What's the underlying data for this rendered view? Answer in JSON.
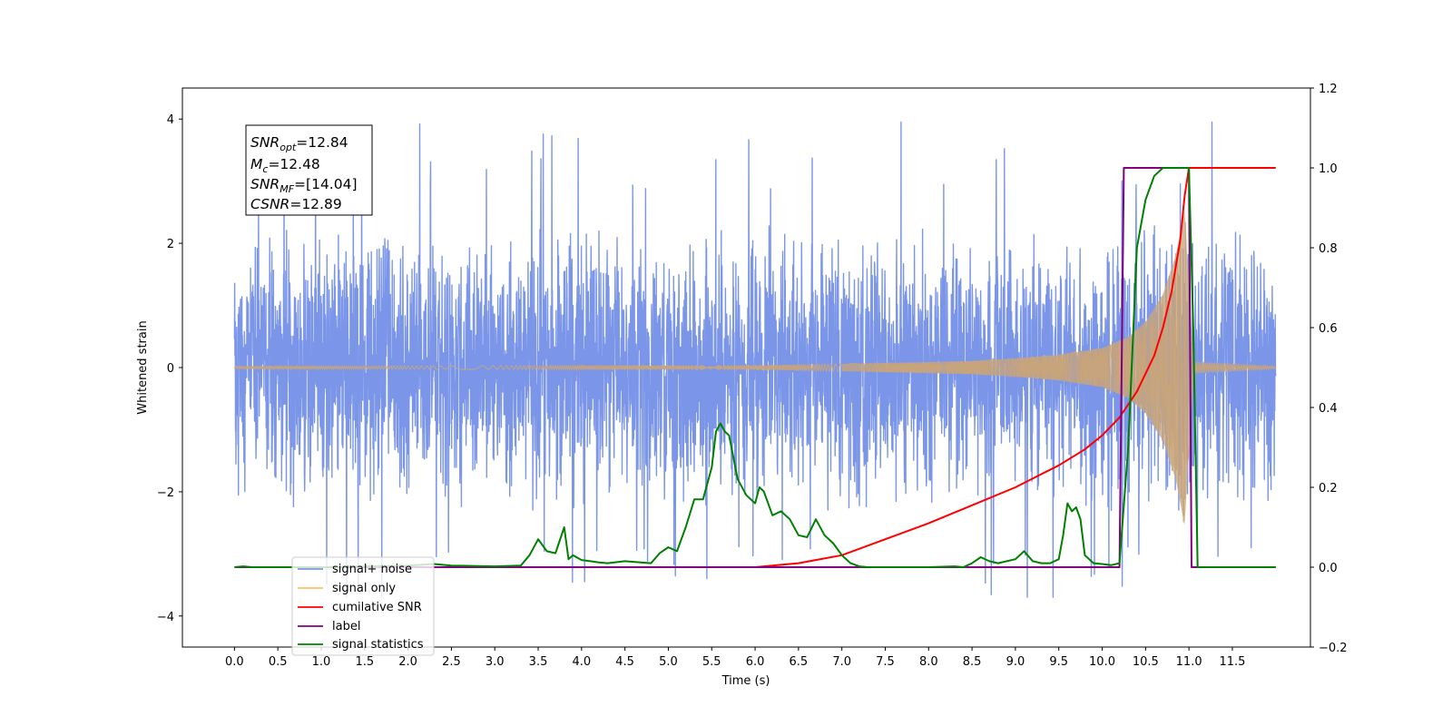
{
  "chart_data": {
    "type": "line",
    "xlabel": "Time (s)",
    "ylabel_left": "Whitened strain",
    "ylabel_right": "",
    "xlim": [
      -0.6,
      12.4
    ],
    "ylim_left": [
      -4.5,
      4.5
    ],
    "ylim_right": [
      -0.2,
      1.2
    ],
    "x_ticks": [
      0.0,
      0.5,
      1.0,
      1.5,
      2.0,
      2.5,
      3.0,
      3.5,
      4.0,
      4.5,
      5.0,
      5.5,
      6.0,
      6.5,
      7.0,
      7.5,
      8.0,
      8.5,
      9.0,
      9.5,
      10.0,
      10.5,
      11.0,
      11.5
    ],
    "x_tick_labels": [
      "0.0",
      "0.5",
      "1.0",
      "1.5",
      "2.0",
      "2.5",
      "3.0",
      "3.5",
      "4.0",
      "4.5",
      "5.0",
      "5.5",
      "6.0",
      "6.5",
      "7.0",
      "7.5",
      "8.0",
      "8.5",
      "9.0",
      "9.5",
      "10.0",
      "10.5",
      "11.0",
      "11.5"
    ],
    "y_ticks_left": [
      -4,
      -2,
      0,
      2,
      4
    ],
    "y_tick_labels_left": [
      "−4",
      "−2",
      "0",
      "2",
      "4"
    ],
    "y_ticks_right": [
      -0.2,
      0.0,
      0.2,
      0.4,
      0.6,
      0.8,
      1.0,
      1.2
    ],
    "y_tick_labels_right": [
      "−0.2",
      "0.0",
      "0.2",
      "0.4",
      "0.6",
      "0.8",
      "1.0",
      "1.2"
    ],
    "grid": false,
    "legend_position": "bottom-left",
    "annotation": [
      {
        "base": "SNR",
        "sub": "opt",
        "rest": "=12.84"
      },
      {
        "base": "M",
        "sub": "c",
        "rest": "=12.48"
      },
      {
        "base": "SNR",
        "sub": "MF",
        "rest": "=[14.04]"
      },
      {
        "base": "CSNR",
        "sub": "",
        "rest": "=12.89"
      }
    ],
    "noise": {
      "t_start": 0.0,
      "t_end": 12.0,
      "typical_envelope": [
        -2.2,
        2.5
      ],
      "extremes": [
        -3.7,
        4.1
      ],
      "color": "#7b96e8"
    },
    "signal_only": {
      "axis": "left",
      "color": "#c8a47a",
      "t_start": 0.0,
      "merger_time": 10.95,
      "end_time": 11.05,
      "envelope": [
        [
          0.0,
          0.02
        ],
        [
          6.0,
          0.04
        ],
        [
          7.0,
          0.06
        ],
        [
          8.0,
          0.09
        ],
        [
          8.5,
          0.11
        ],
        [
          9.0,
          0.15
        ],
        [
          9.5,
          0.21
        ],
        [
          10.0,
          0.32
        ],
        [
          10.3,
          0.5
        ],
        [
          10.5,
          0.75
        ],
        [
          10.7,
          1.2
        ],
        [
          10.85,
          1.85
        ],
        [
          10.95,
          2.6
        ],
        [
          11.05,
          0.1
        ],
        [
          12.0,
          0.02
        ]
      ]
    },
    "series": [
      {
        "name": "cumilative SNR",
        "axis": "right",
        "color": "#ff0000",
        "x": [
          0.0,
          6.0,
          6.5,
          7.0,
          7.5,
          8.0,
          8.5,
          9.0,
          9.5,
          9.8,
          10.0,
          10.2,
          10.4,
          10.6,
          10.7,
          10.8,
          10.9,
          10.95,
          11.0,
          11.2,
          11.5,
          12.0
        ],
        "y": [
          0.0,
          0.0,
          0.01,
          0.03,
          0.07,
          0.11,
          0.155,
          0.2,
          0.255,
          0.295,
          0.33,
          0.375,
          0.44,
          0.53,
          0.6,
          0.69,
          0.82,
          0.93,
          1.0,
          1.0,
          1.0,
          1.0
        ]
      },
      {
        "name": "label",
        "axis": "right",
        "color": "#800080",
        "x": [
          0.0,
          10.2,
          10.25,
          11.0,
          11.03,
          12.0
        ],
        "y": [
          0.0,
          0.0,
          1.0,
          1.0,
          0.0,
          0.0
        ]
      },
      {
        "name": "signal statistics",
        "axis": "right",
        "color": "#008000",
        "x": [
          0.0,
          0.1,
          0.2,
          0.3,
          1.0,
          1.5,
          2.0,
          2.3,
          2.5,
          3.0,
          3.3,
          3.4,
          3.5,
          3.6,
          3.7,
          3.8,
          3.85,
          3.9,
          4.0,
          4.1,
          4.2,
          4.3,
          4.5,
          4.8,
          4.9,
          5.0,
          5.1,
          5.2,
          5.3,
          5.4,
          5.5,
          5.55,
          5.6,
          5.65,
          5.7,
          5.8,
          5.9,
          6.0,
          6.05,
          6.1,
          6.2,
          6.3,
          6.4,
          6.5,
          6.6,
          6.7,
          6.8,
          6.9,
          7.0,
          7.1,
          7.2,
          7.3,
          7.5,
          8.0,
          8.3,
          8.4,
          8.5,
          8.6,
          8.7,
          8.8,
          9.0,
          9.1,
          9.2,
          9.3,
          9.4,
          9.5,
          9.55,
          9.6,
          9.65,
          9.7,
          9.75,
          9.8,
          9.9,
          10.0,
          10.1,
          10.2,
          10.3,
          10.4,
          10.5,
          10.6,
          10.7,
          10.8,
          11.0,
          11.05,
          11.1,
          12.0
        ],
        "y": [
          0.0,
          0.002,
          0.0,
          0.0,
          0.0,
          0.002,
          0.004,
          0.008,
          0.004,
          0.002,
          0.004,
          0.03,
          0.07,
          0.04,
          0.035,
          0.1,
          0.02,
          0.03,
          0.018,
          0.015,
          0.012,
          0.01,
          0.015,
          0.01,
          0.035,
          0.05,
          0.04,
          0.1,
          0.17,
          0.17,
          0.25,
          0.34,
          0.36,
          0.34,
          0.33,
          0.22,
          0.18,
          0.16,
          0.2,
          0.19,
          0.13,
          0.14,
          0.12,
          0.08,
          0.075,
          0.12,
          0.08,
          0.06,
          0.03,
          0.01,
          0.002,
          0.0,
          0.0,
          0.0,
          0.002,
          0.0,
          0.01,
          0.025,
          0.015,
          0.01,
          0.02,
          0.04,
          0.015,
          0.01,
          0.01,
          0.02,
          0.08,
          0.16,
          0.14,
          0.15,
          0.12,
          0.03,
          0.01,
          0.008,
          0.005,
          0.01,
          0.3,
          0.8,
          0.92,
          0.98,
          1.0,
          1.0,
          1.0,
          0.6,
          0.0,
          0.0
        ]
      }
    ],
    "legend": [
      {
        "label": "signal+ noise",
        "color": "#7b96e8"
      },
      {
        "label": "signal only",
        "color": "#ffbf66"
      },
      {
        "label": "cumilative SNR",
        "color": "#ff0000"
      },
      {
        "label": "label",
        "color": "#800080"
      },
      {
        "label": "signal statistics",
        "color": "#008000"
      }
    ]
  }
}
